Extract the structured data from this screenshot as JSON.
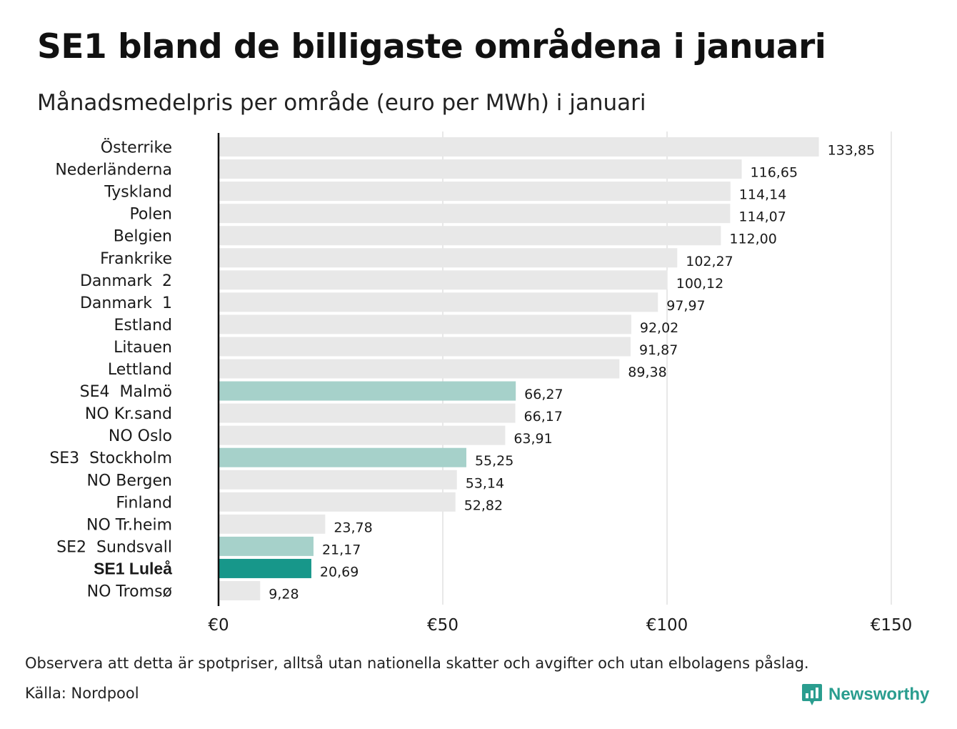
{
  "header": {
    "title": "SE1 bland de billigaste områdena i januari",
    "subtitle": "Månadsmedelpris per område (euro per MWh) i januari"
  },
  "footer": {
    "note": "Observera att detta är spotpriser, alltså utan nationella skatter och avgifter och utan elbolagens påslag.",
    "source": "Källa: Nordpool",
    "brand": "Newsworthy"
  },
  "colors": {
    "default_bar": "#e8e8e8",
    "swedish_bar": "#a6d1ca",
    "highlight_bar": "#17978a",
    "brand": "#2a9d8f"
  },
  "chart_data": {
    "type": "bar",
    "orientation": "horizontal",
    "categories": [
      "Österrike",
      "Nederländerna",
      "Tyskland",
      "Polen",
      "Belgien",
      "Frankrike",
      "Danmark  2",
      "Danmark  1",
      "Estland",
      "Litauen",
      "Lettland",
      "SE4  Malmö",
      "NO Kr.sand",
      "NO Oslo",
      "SE3  Stockholm",
      "NO Bergen",
      "Finland",
      "NO Tr.heim",
      "SE2  Sundsvall",
      "SE1 Luleå",
      "NO Tromsø"
    ],
    "values": [
      133.85,
      116.65,
      114.14,
      114.07,
      112.0,
      102.27,
      100.12,
      97.97,
      92.02,
      91.87,
      89.38,
      66.27,
      66.17,
      63.91,
      55.25,
      53.14,
      52.82,
      23.78,
      21.17,
      20.69,
      9.28
    ],
    "value_labels": [
      "133,85",
      "116,65",
      "114,14",
      "114,07",
      "112,00",
      "102,27",
      "100,12",
      "97,97",
      "92,02",
      "91,87",
      "89,38",
      "66,27",
      "66,17",
      "63,91",
      "55,25",
      "53,14",
      "52,82",
      "23,78",
      "21,17",
      "20,69",
      "9,28"
    ],
    "highlight": [
      "default",
      "default",
      "default",
      "default",
      "default",
      "default",
      "default",
      "default",
      "default",
      "default",
      "default",
      "swedish",
      "default",
      "default",
      "swedish",
      "default",
      "default",
      "default",
      "swedish",
      "highlight",
      "default"
    ],
    "xlim": [
      0,
      150
    ],
    "xticks": [
      0,
      50,
      100,
      150
    ],
    "xtick_labels": [
      "€0",
      "€50",
      "€100",
      "€150"
    ],
    "grid": true
  }
}
